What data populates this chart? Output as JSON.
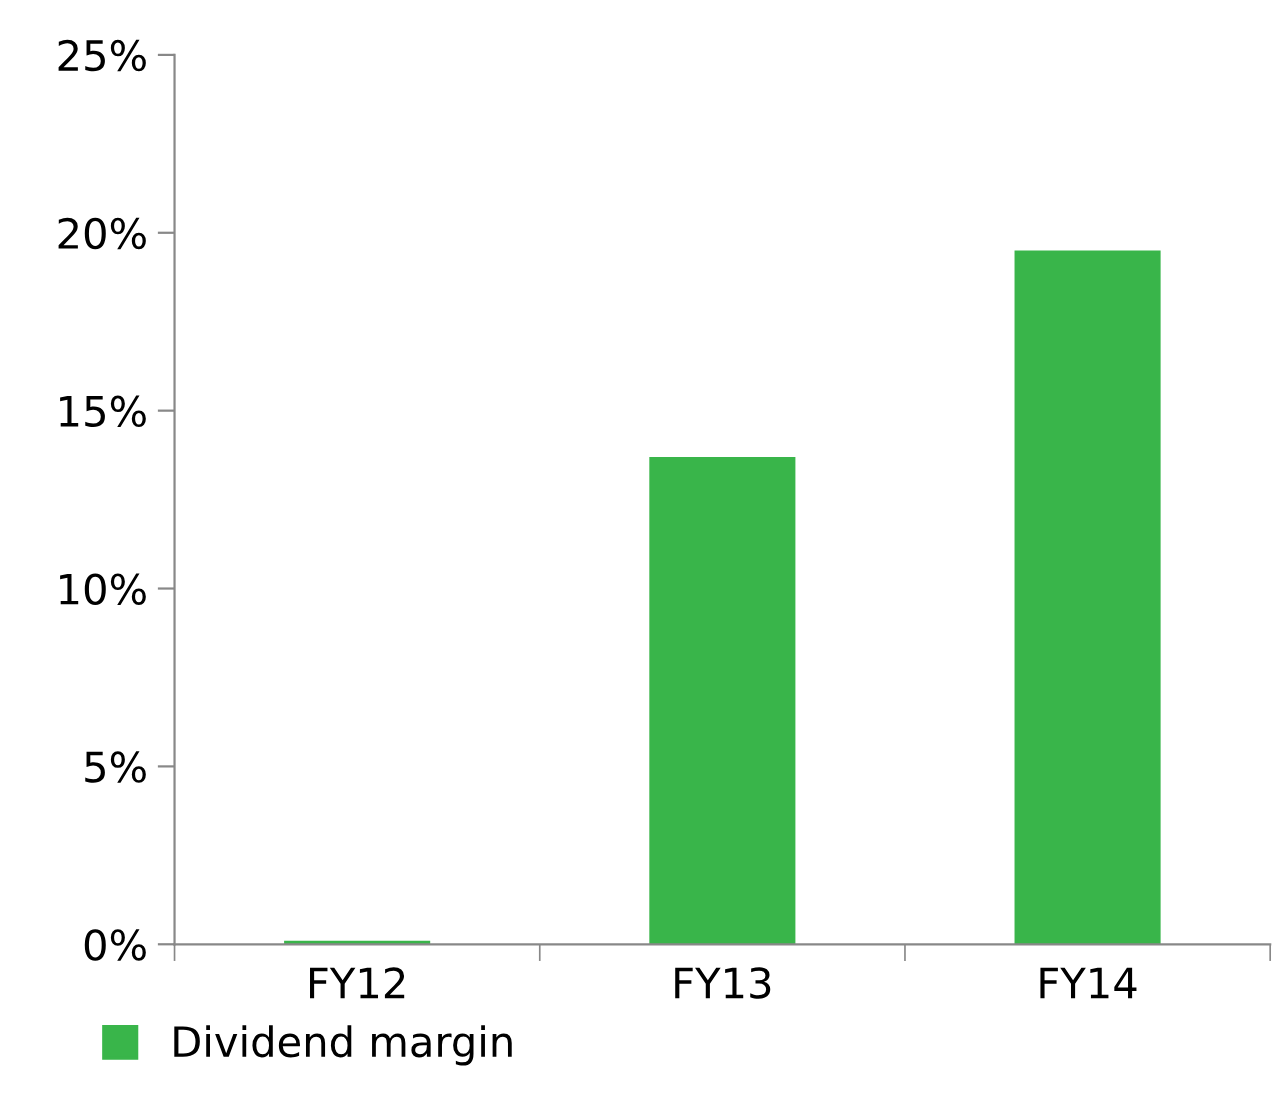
{
  "chart_data": {
    "type": "bar",
    "categories": [
      "FY12",
      "FY13",
      "FY14"
    ],
    "series": [
      {
        "name": "Dividend margin",
        "color": "#39b54a",
        "values": [
          0.1,
          13.7,
          19.5
        ]
      }
    ],
    "ylim": [
      0,
      25
    ],
    "yticks": [
      {
        "value": 0,
        "label": "0%"
      },
      {
        "value": 5,
        "label": "5%"
      },
      {
        "value": 10,
        "label": "10%"
      },
      {
        "value": 15,
        "label": "15%"
      },
      {
        "value": 20,
        "label": "20%"
      },
      {
        "value": 25,
        "label": "25%"
      }
    ],
    "grid": false,
    "legend": "bottom left"
  }
}
